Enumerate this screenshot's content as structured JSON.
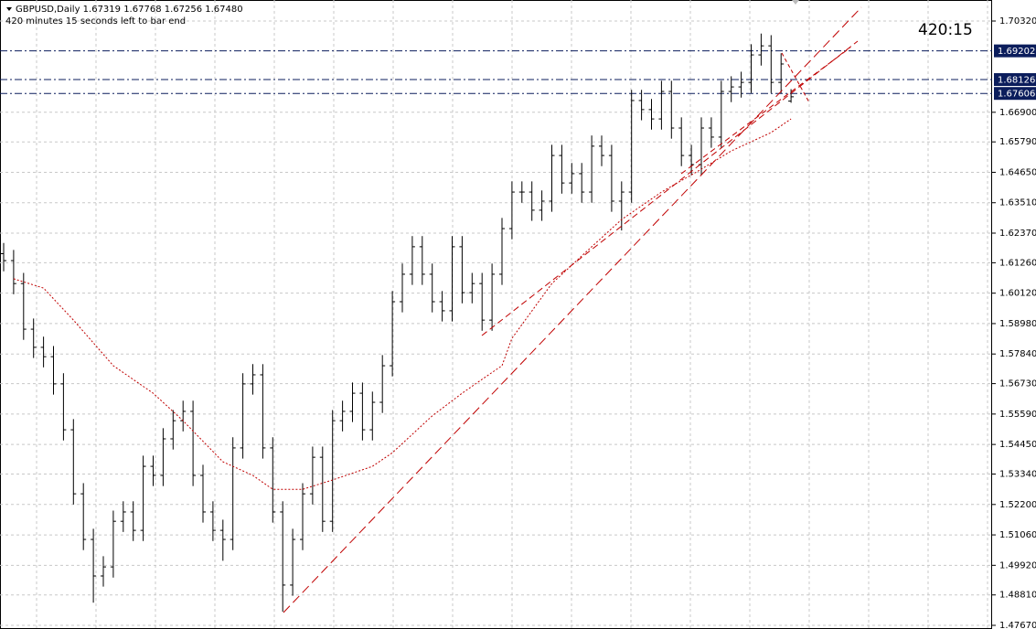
{
  "chart_data": {
    "type": "ohlc",
    "title": "GBPUSD,Daily  1.67319 1.67768 1.67256 1.67480",
    "subtitle": "420 minutes 15 seconds left to bar end",
    "timer": "420:15",
    "bar_color": "#000000",
    "open": [
      1.616,
      1.6134,
      1.6048,
      1.5877,
      1.5809,
      1.5774,
      1.5672,
      1.55,
      1.526,
      1.5089,
      1.4952,
      1.4986,
      1.5157,
      1.5192,
      1.5123,
      1.5363,
      1.5329,
      1.5466,
      1.5534,
      1.5569,
      1.5329,
      1.5192,
      1.5123,
      1.5089,
      1.5432,
      1.5672,
      1.5706,
      1.5432,
      1.5192,
      1.4918,
      1.5089,
      1.526,
      1.5397,
      1.5157,
      1.5534,
      1.5569,
      1.5637,
      1.55,
      1.5603,
      1.574,
      1.598,
      1.6083,
      1.6186,
      1.6083,
      1.598,
      1.5946,
      1.6186,
      1.6014,
      1.6048,
      1.5911,
      1.6083,
      1.6254,
      1.6391,
      1.6391,
      1.6323,
      1.6357,
      1.6528,
      1.6425,
      1.646,
      1.6391,
      1.6563,
      1.6528,
      1.6357,
      1.6391,
      1.6734,
      1.67,
      1.6665,
      1.6768,
      1.6631,
      1.6528,
      1.6494,
      1.6631,
      1.6597,
      1.6768,
      1.6785,
      1.6802,
      1.6905,
      1.6939,
      1.6802,
      1.67319
    ],
    "high": [
      1.62,
      1.6174,
      1.6088,
      1.5917,
      1.5849,
      1.5814,
      1.5712,
      1.554,
      1.53,
      1.5129,
      1.5026,
      1.5197,
      1.5232,
      1.5232,
      1.5403,
      1.5403,
      1.5506,
      1.5574,
      1.5609,
      1.5609,
      1.5369,
      1.5232,
      1.5163,
      1.5472,
      1.5712,
      1.5746,
      1.5746,
      1.5472,
      1.5232,
      1.5129,
      1.53,
      1.5437,
      1.5437,
      1.5574,
      1.5609,
      1.5677,
      1.5677,
      1.5643,
      1.578,
      1.602,
      1.6123,
      1.6226,
      1.6226,
      1.6123,
      1.602,
      1.6226,
      1.6226,
      1.6088,
      1.6088,
      1.6123,
      1.6294,
      1.6431,
      1.6431,
      1.6431,
      1.6397,
      1.6568,
      1.6568,
      1.65,
      1.65,
      1.6603,
      1.6603,
      1.6568,
      1.6431,
      1.6774,
      1.6774,
      1.674,
      1.6808,
      1.6808,
      1.6671,
      1.6568,
      1.6671,
      1.6671,
      1.6808,
      1.6825,
      1.6842,
      1.6945,
      1.6985,
      1.6979,
      1.6911,
      1.67768
    ],
    "low": [
      1.6094,
      1.6008,
      1.5837,
      1.5769,
      1.5734,
      1.5632,
      1.546,
      1.522,
      1.5049,
      1.4852,
      1.4912,
      1.4946,
      1.5117,
      1.5083,
      1.5083,
      1.5289,
      1.5289,
      1.5426,
      1.5494,
      1.5289,
      1.5152,
      1.5083,
      1.5009,
      1.5049,
      1.5392,
      1.5632,
      1.5392,
      1.5152,
      1.4818,
      1.4878,
      1.5049,
      1.522,
      1.5117,
      1.5117,
      1.5494,
      1.5529,
      1.546,
      1.546,
      1.5563,
      1.57,
      1.594,
      1.6043,
      1.6043,
      1.594,
      1.5906,
      1.5906,
      1.5974,
      1.5974,
      1.5871,
      1.5871,
      1.6043,
      1.6214,
      1.6351,
      1.6283,
      1.6283,
      1.6317,
      1.6385,
      1.6385,
      1.6351,
      1.6351,
      1.6488,
      1.6317,
      1.6247,
      1.6351,
      1.666,
      1.6625,
      1.6625,
      1.6591,
      1.6488,
      1.6454,
      1.6454,
      1.6557,
      1.6557,
      1.6728,
      1.6745,
      1.6762,
      1.6865,
      1.6762,
      1.6762,
      1.67256
    ],
    "close": [
      1.6134,
      1.6048,
      1.5877,
      1.5809,
      1.5774,
      1.5672,
      1.55,
      1.526,
      1.5089,
      1.4952,
      1.4986,
      1.5157,
      1.5192,
      1.5123,
      1.5363,
      1.5329,
      1.5466,
      1.5534,
      1.5569,
      1.5329,
      1.5192,
      1.5123,
      1.5089,
      1.5432,
      1.5672,
      1.5706,
      1.5432,
      1.5192,
      1.4918,
      1.5089,
      1.526,
      1.5397,
      1.5157,
      1.5534,
      1.5569,
      1.5637,
      1.55,
      1.5603,
      1.574,
      1.598,
      1.6083,
      1.6186,
      1.6083,
      1.598,
      1.5946,
      1.6186,
      1.6014,
      1.6048,
      1.5911,
      1.6083,
      1.6254,
      1.6391,
      1.6391,
      1.6323,
      1.6357,
      1.6528,
      1.6425,
      1.646,
      1.6391,
      1.6563,
      1.6528,
      1.6357,
      1.6391,
      1.6734,
      1.67,
      1.6665,
      1.6768,
      1.6631,
      1.6528,
      1.6494,
      1.6631,
      1.6597,
      1.6768,
      1.6785,
      1.6802,
      1.6905,
      1.6939,
      1.6802,
      1.6871,
      1.6748
    ],
    "moving_average": {
      "color": "#c00000",
      "x": [
        1,
        4,
        7,
        11,
        15,
        18,
        22,
        25,
        27,
        30,
        33,
        37,
        39,
        43,
        46,
        48,
        50,
        51,
        55,
        59,
        62,
        66,
        70,
        73,
        77,
        79
      ],
      "values": [
        1.6066,
        1.6031,
        1.5911,
        1.574,
        1.5637,
        1.5534,
        1.538,
        1.5329,
        1.5277,
        1.5277,
        1.5312,
        1.5363,
        1.5414,
        1.5552,
        1.5637,
        1.5689,
        1.574,
        1.5843,
        1.6048,
        1.6186,
        1.6288,
        1.6391,
        1.6477,
        1.6545,
        1.6614,
        1.6665
      ]
    },
    "levels": [
      1.69202,
      1.68126,
      1.67606
    ],
    "level_color": "#0b1d5c",
    "ylim": [
      1.47533,
      1.71108
    ],
    "yticks": [
      {
        "value": 1.7032,
        "label": "1.70320"
      },
      {
        "value": 1.669,
        "label": "1.66900"
      },
      {
        "value": 1.6579,
        "label": "1.65790"
      },
      {
        "value": 1.6465,
        "label": "1.64650"
      },
      {
        "value": 1.6351,
        "label": "1.63510"
      },
      {
        "value": 1.6237,
        "label": "1.62370"
      },
      {
        "value": 1.6126,
        "label": "1.61260"
      },
      {
        "value": 1.6012,
        "label": "1.60120"
      },
      {
        "value": 1.5898,
        "label": "1.58980"
      },
      {
        "value": 1.5784,
        "label": "1.57840"
      },
      {
        "value": 1.5673,
        "label": "1.56730"
      },
      {
        "value": 1.5559,
        "label": "1.55590"
      },
      {
        "value": 1.5445,
        "label": "1.54450"
      },
      {
        "value": 1.5334,
        "label": "1.53340"
      },
      {
        "value": 1.522,
        "label": "1.52200"
      },
      {
        "value": 1.5106,
        "label": "1.51060"
      },
      {
        "value": 1.4992,
        "label": "1.49920"
      },
      {
        "value": 1.4881,
        "label": "1.48810"
      },
      {
        "value": 1.4767,
        "label": "1.47670"
      }
    ],
    "grid": true
  }
}
